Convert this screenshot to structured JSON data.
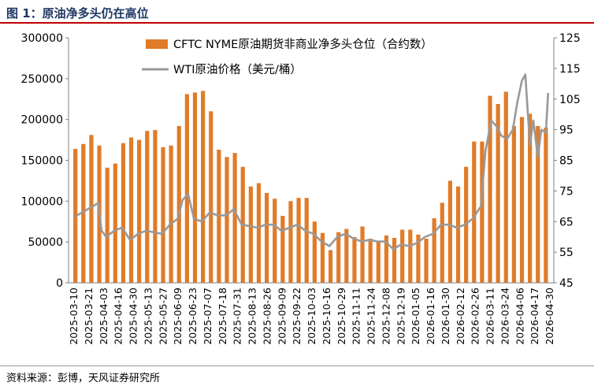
{
  "figure_title": "图 1：原油净多头仍在高位",
  "source_note": "资料来源：彭博，天风证券研究所",
  "colors": {
    "bar": "#E07B28",
    "line": "#999999",
    "title": "#1f3864",
    "title_rule": "#c00000"
  },
  "chart_data": {
    "type": "bar+line",
    "title": "",
    "legend": {
      "placement": "top-center",
      "entries": [
        "CFTC NYME原油期货非商业净多头仓位（合约数）",
        "WTI原油价格（美元/桶）"
      ]
    },
    "left_axis": {
      "ylim": [
        0,
        300000
      ],
      "ticks": [
        "0",
        "50000",
        "100000",
        "150000",
        "200000",
        "250000",
        "300000"
      ]
    },
    "right_axis": {
      "ylim": [
        45,
        125
      ],
      "ticks": [
        "45",
        "55",
        "65",
        "75",
        "85",
        "95",
        "105",
        "115",
        "125"
      ]
    },
    "grid": false,
    "x_tick_labels": [
      "2025-03-10",
      "2025-03-21",
      "2025-04-03",
      "2025-04-16",
      "2025-04-30",
      "2025-05-13",
      "2025-05-27",
      "2025-06-09",
      "2025-06-23",
      "2025-07-07",
      "2025-07-18",
      "2025-07-31",
      "2025-08-13",
      "2025-08-26",
      "2025-09-09",
      "2025-09-22",
      "2025-10-03",
      "2025-10-16",
      "2025-10-29",
      "2025-11-11",
      "2025-11-24",
      "2025-12-08",
      "2025-12-19",
      "2026-01-05",
      "2026-01-16",
      "2026-01-30",
      "2026-02-12",
      "2026-02-26",
      "2026-03-11",
      "2026-03-24",
      "2026-04-06",
      "2026-04-17",
      "2026-04-30"
    ],
    "series": [
      {
        "name": "CFTC NYME原油期货非商业净多头仓位（合约数）",
        "type": "bar",
        "axis": "left",
        "x": [
          "2025-03-11",
          "2025-03-18",
          "2025-03-25",
          "2025-04-01",
          "2025-04-08",
          "2025-04-15",
          "2025-04-22",
          "2025-04-29",
          "2025-05-06",
          "2025-05-13",
          "2025-05-20",
          "2025-05-27",
          "2025-06-03",
          "2025-06-10",
          "2025-06-17",
          "2025-06-24",
          "2025-07-01",
          "2025-07-08",
          "2025-07-15",
          "2025-07-22",
          "2025-07-29",
          "2025-08-05",
          "2025-08-12",
          "2025-08-19",
          "2025-08-26",
          "2025-09-02",
          "2025-09-09",
          "2025-09-16",
          "2025-09-23",
          "2025-09-30",
          "2025-10-07",
          "2025-10-14",
          "2025-10-21",
          "2025-10-28",
          "2025-11-04",
          "2025-11-11",
          "2025-11-18",
          "2025-11-25",
          "2025-12-02",
          "2025-12-09",
          "2025-12-16",
          "2025-12-23",
          "2025-12-30",
          "2026-01-06",
          "2026-01-13",
          "2026-01-20",
          "2026-01-27",
          "2026-02-03",
          "2026-02-10",
          "2026-02-17",
          "2026-02-24",
          "2026-03-03",
          "2026-03-10",
          "2026-03-17",
          "2026-03-24",
          "2026-03-31",
          "2026-04-07",
          "2026-04-14",
          "2026-04-21",
          "2026-04-28"
        ],
        "values": [
          164000,
          170000,
          181000,
          168000,
          141000,
          146000,
          171000,
          178000,
          175000,
          186000,
          187000,
          166000,
          168000,
          192000,
          231000,
          233000,
          235000,
          210000,
          163000,
          154000,
          159000,
          142000,
          118000,
          122000,
          110000,
          103000,
          82000,
          100000,
          104000,
          104000,
          75000,
          61000,
          40000,
          62000,
          66000,
          56000,
          69000,
          54000,
          51000,
          58000,
          55000,
          65000,
          65000,
          59000,
          54000,
          79000,
          98000,
          125000,
          118000,
          142000,
          173000,
          173000,
          229000,
          219000,
          234000,
          192000,
          203000,
          207000,
          192000,
          190000
        ]
      },
      {
        "name": "WTI原油价格（美元/桶）",
        "type": "line",
        "axis": "right",
        "x": [
          "2025-03-10",
          "2025-03-17",
          "2025-03-24",
          "2025-03-31",
          "2025-04-03",
          "2025-04-07",
          "2025-04-14",
          "2025-04-21",
          "2025-04-28",
          "2025-05-05",
          "2025-05-12",
          "2025-05-19",
          "2025-05-26",
          "2025-06-02",
          "2025-06-09",
          "2025-06-13",
          "2025-06-18",
          "2025-06-23",
          "2025-06-30",
          "2025-07-07",
          "2025-07-14",
          "2025-07-21",
          "2025-07-28",
          "2025-08-04",
          "2025-08-11",
          "2025-08-18",
          "2025-08-25",
          "2025-09-01",
          "2025-09-08",
          "2025-09-15",
          "2025-09-22",
          "2025-09-29",
          "2025-10-06",
          "2025-10-13",
          "2025-10-20",
          "2025-10-27",
          "2025-11-03",
          "2025-11-10",
          "2025-11-17",
          "2025-11-24",
          "2025-12-01",
          "2025-12-08",
          "2025-12-15",
          "2025-12-22",
          "2025-12-29",
          "2026-01-05",
          "2026-01-12",
          "2026-01-19",
          "2026-01-26",
          "2026-02-02",
          "2026-02-09",
          "2026-02-16",
          "2026-02-23",
          "2026-03-02",
          "2026-03-06",
          "2026-03-11",
          "2026-03-16",
          "2026-03-20",
          "2026-03-25",
          "2026-03-30",
          "2026-04-03",
          "2026-04-07",
          "2026-04-10",
          "2026-04-14",
          "2026-04-17",
          "2026-04-21",
          "2026-04-24",
          "2026-04-28",
          "2026-04-30"
        ],
        "values": [
          66.5,
          68,
          69.5,
          71,
          62,
          60,
          62,
          63,
          59,
          61,
          62,
          61.5,
          61,
          64,
          66,
          72,
          74,
          66,
          65,
          68,
          67,
          67,
          69,
          64,
          63.5,
          63,
          64,
          64,
          62,
          63,
          64,
          62,
          61,
          58.5,
          57,
          60,
          61,
          59.5,
          58.5,
          59,
          58.5,
          58.5,
          56,
          57.5,
          57,
          58,
          60,
          61,
          64,
          64,
          63,
          64,
          66,
          70,
          88,
          98,
          96,
          93,
          92,
          95,
          104,
          111,
          113,
          90,
          98,
          86,
          95,
          94,
          107
        ]
      }
    ]
  }
}
